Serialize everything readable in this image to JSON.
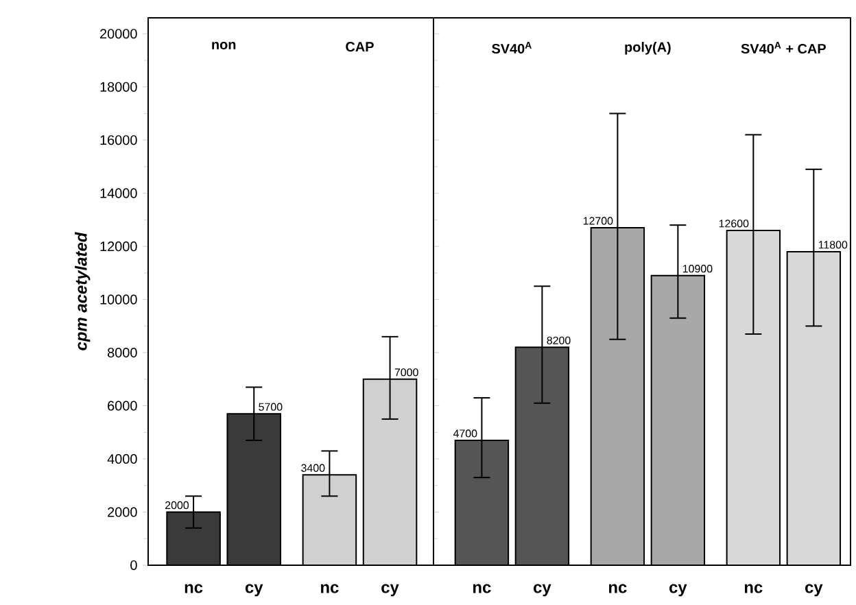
{
  "chart_data": [
    {
      "type": "bar",
      "ylabel": "cpm acetylated",
      "categories": [
        "nc",
        "cy",
        "nc",
        "cy"
      ],
      "values": [
        2000,
        5700,
        3400,
        7000
      ],
      "colors": [
        "#3a3a3a",
        "#3a3a3a",
        "#d0d0d0",
        "#d0d0d0"
      ],
      "errors": [
        [
          1400,
          2600
        ],
        [
          4700,
          6700
        ],
        [
          2600,
          4300
        ],
        [
          5500,
          8600
        ]
      ],
      "data_labels": true,
      "annotations": [
        "non",
        "CAP"
      ],
      "ylim": [
        0,
        20600
      ],
      "yticks": [
        0,
        2000,
        4000,
        6000,
        8000,
        10000,
        12000,
        14000,
        16000,
        18000,
        20000
      ]
    },
    {
      "type": "bar",
      "categories": [
        "nc",
        "cy",
        "nc",
        "cy",
        "nc",
        "cy"
      ],
      "values": [
        4700,
        8200,
        12700,
        10900,
        12600,
        11800
      ],
      "colors": [
        "#555555",
        "#555555",
        "#a8a8a8",
        "#a8a8a8",
        "#d8d8d8",
        "#d8d8d8"
      ],
      "errors": [
        [
          3300,
          6300
        ],
        [
          6100,
          10500
        ],
        [
          8500,
          17000
        ],
        [
          9300,
          12800
        ],
        [
          8700,
          16200
        ],
        [
          9000,
          14900
        ]
      ],
      "data_labels": true,
      "annotations": [
        "SV40$^{A}$",
        "poly(A)",
        "SV40$^{A}$ + CAP"
      ],
      "ylim": [
        0,
        20600
      ],
      "tick_labels": "x"
    }
  ]
}
